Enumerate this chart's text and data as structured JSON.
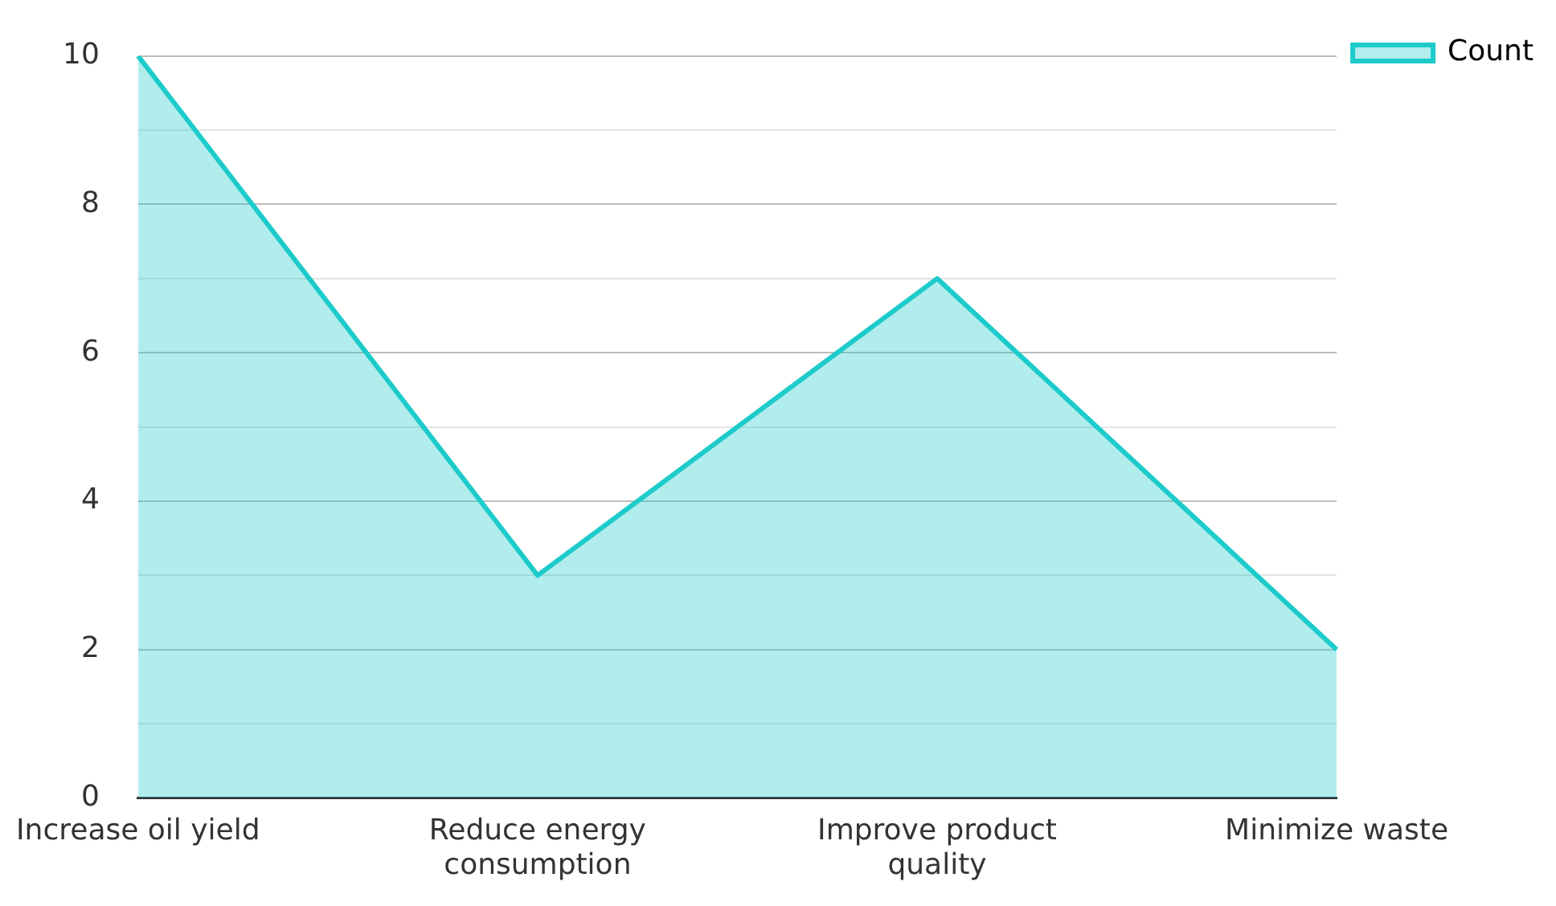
{
  "chart_data": {
    "type": "area",
    "categories": [
      "Increase oil yield",
      "Reduce energy consumption",
      "Improve product quality",
      "Minimize waste"
    ],
    "series": [
      {
        "name": "Count",
        "color": "#1ecbcb",
        "values": [
          10,
          3,
          7,
          2
        ]
      }
    ],
    "ylim": [
      0,
      10
    ],
    "yticks": [
      0,
      {
        "value": 1,
        "label": null
      },
      2,
      {
        "value": 3,
        "label": null
      },
      4,
      {
        "value": 5,
        "label": null
      },
      6,
      {
        "value": 7,
        "label": null
      },
      8,
      {
        "value": 9,
        "label": null
      },
      10
    ],
    "grid": "y",
    "legend": "top right"
  }
}
